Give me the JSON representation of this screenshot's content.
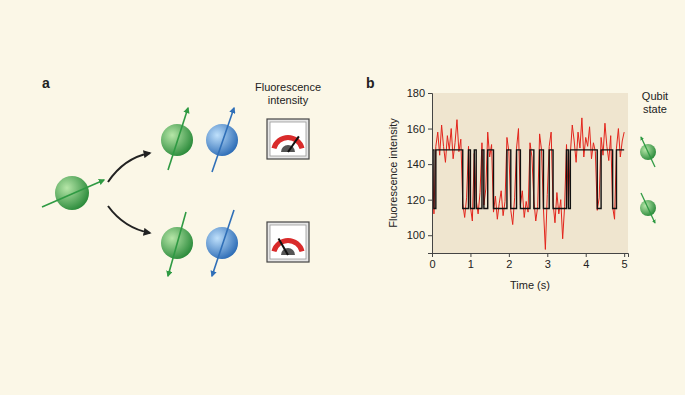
{
  "panel_labels": [
    "a",
    "b"
  ],
  "diagram": {
    "meter_label_lines": [
      "Fluorescence",
      "intensity"
    ]
  },
  "chart_data": {
    "type": "line",
    "xlabel": "Time (s)",
    "ylabel": "Fluorescence intensity",
    "annotation_lines": [
      "Qubit",
      "state"
    ],
    "xlim": [
      0,
      5.1
    ],
    "xticks": [
      0,
      1,
      2,
      3,
      4,
      5
    ],
    "ylim": [
      90,
      180
    ],
    "yticks": [
      100,
      120,
      140,
      160,
      180
    ],
    "grid": false,
    "series": [
      {
        "color": "#e3241b",
        "line_style": "solid",
        "x": [
          0,
          0.05,
          0.1,
          0.15,
          0.2,
          0.25,
          0.3,
          0.35,
          0.4,
          0.45,
          0.5,
          0.55,
          0.6,
          0.65,
          0.7,
          0.75,
          0.8,
          0.85,
          0.9,
          0.95,
          1,
          1.05,
          1.1,
          1.15,
          1.2,
          1.25,
          1.3,
          1.35,
          1.4,
          1.45,
          1.5,
          1.55,
          1.6,
          1.65,
          1.7,
          1.75,
          1.8,
          1.85,
          1.9,
          1.95,
          2,
          2.05,
          2.1,
          2.15,
          2.2,
          2.25,
          2.3,
          2.35,
          2.4,
          2.45,
          2.5,
          2.55,
          2.6,
          2.65,
          2.7,
          2.75,
          2.8,
          2.85,
          2.9,
          2.95,
          3,
          3.05,
          3.1,
          3.15,
          3.2,
          3.25,
          3.3,
          3.35,
          3.4,
          3.45,
          3.5,
          3.55,
          3.6,
          3.65,
          3.7,
          3.75,
          3.8,
          3.85,
          3.9,
          3.95,
          4,
          4.05,
          4.1,
          4.15,
          4.2,
          4.25,
          4.3,
          4.35,
          4.4,
          4.45,
          4.5,
          4.55,
          4.6,
          4.65,
          4.7,
          4.75,
          4.8,
          4.85,
          4.9,
          4.95,
          5
        ],
        "values": [
          155,
          112,
          150,
          158,
          145,
          162,
          150,
          141,
          156,
          148,
          160,
          143,
          152,
          165,
          147,
          154,
          118,
          110,
          121,
          150,
          116,
          108,
          146,
          120,
          112,
          124,
          152,
          117,
          126,
          158,
          144,
          151,
          113,
          122,
          109,
          118,
          125,
          111,
          119,
          155,
          147,
          114,
          106,
          121,
          149,
          160,
          117,
          125,
          110,
          119,
          113,
          152,
          144,
          120,
          108,
          116,
          157,
          148,
          115,
          92,
          123,
          150,
          158,
          118,
          107,
          124,
          112,
          120,
          98,
          116,
          151,
          117,
          146,
          162,
          153,
          141,
          158,
          149,
          166,
          144,
          155,
          150,
          161,
          143,
          152,
          147,
          114,
          121,
          155,
          145,
          163,
          150,
          142,
          156,
          116,
          109,
          149,
          160,
          144,
          153,
          158
        ]
      },
      {
        "color": "#111111",
        "line_style": "step",
        "x": [
          0,
          0.05,
          0.1,
          0.8,
          0.95,
          1,
          1.1,
          1.15,
          1.3,
          1.35,
          1.45,
          1.6,
          1.95,
          2.05,
          2.2,
          2.3,
          2.55,
          2.65,
          2.8,
          2.9,
          3.05,
          3.15,
          3.5,
          3.55,
          3.6,
          4.3,
          4.4,
          4.7,
          4.8,
          5
        ],
        "values": [
          148,
          115,
          148,
          115,
          148,
          115,
          148,
          115,
          148,
          115,
          148,
          115,
          148,
          115,
          148,
          115,
          148,
          115,
          148,
          115,
          148,
          115,
          148,
          115,
          148,
          115,
          148,
          115,
          148,
          148
        ]
      }
    ]
  }
}
